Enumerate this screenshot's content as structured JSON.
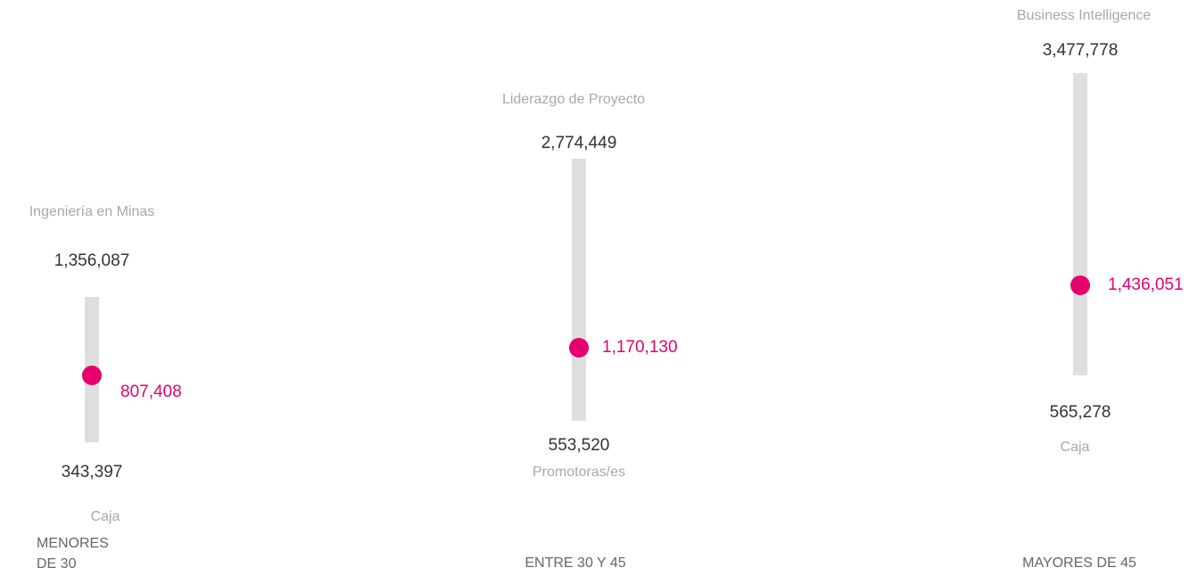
{
  "chart_data": {
    "type": "range",
    "groups": [
      {
        "category": "MENORES DE 30",
        "max_name": "Ingeniería en Minas",
        "min_name": "Caja",
        "values": [
          343397,
          807408,
          1356087
        ],
        "value_labels": [
          "343,397",
          "807,408",
          "1,356,087"
        ]
      },
      {
        "category": "ENTRE 30 Y 45",
        "max_name": "Liderazgo de Proyecto",
        "min_name": "Promotoras/es",
        "values": [
          553520,
          1170130,
          2774449
        ],
        "value_labels": [
          "553,520",
          "1,170,130",
          "2,774,449"
        ]
      },
      {
        "category": "MAYORES DE 45",
        "max_name": "Business Intelligence",
        "min_name": "Caja",
        "values": [
          565278,
          1436051,
          3477778
        ],
        "value_labels": [
          "565,278",
          "1,436,051",
          "3,477,778"
        ]
      }
    ],
    "color": "#e6006e",
    "bar_color": "#dedede"
  }
}
